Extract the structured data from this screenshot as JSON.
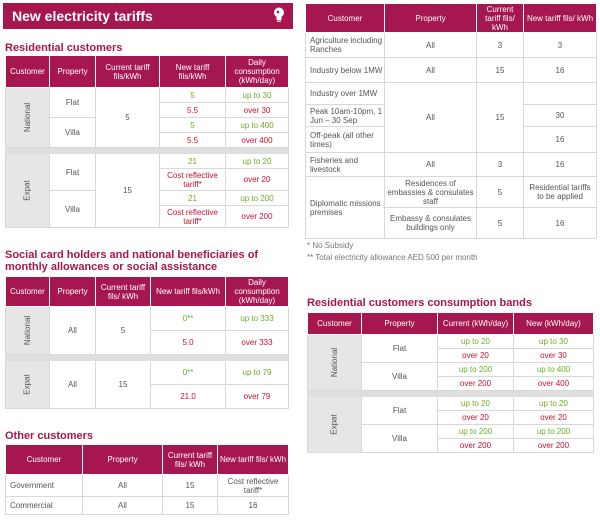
{
  "title": "New electricity tariffs",
  "residential": {
    "heading": "Residential customers",
    "headers": [
      "Customer",
      "Property",
      "Current tariff fils/kWh",
      "New tariff fils/kWh",
      "Daily consumption (kWh/day)"
    ],
    "national": {
      "label": "National",
      "current": "5",
      "flat": {
        "label": "Flat",
        "rows": [
          [
            "5",
            "up to 30"
          ],
          [
            "5.5",
            "over 30"
          ]
        ]
      },
      "villa": {
        "label": "Villa",
        "rows": [
          [
            "5",
            "up to 400"
          ],
          [
            "5.5",
            "over 400"
          ]
        ]
      }
    },
    "expat": {
      "label": "Expat",
      "current": "15",
      "flat": {
        "label": "Flat",
        "rows": [
          [
            "21",
            "up to 20"
          ],
          [
            "Cost reflective tariff*",
            "over 20"
          ]
        ]
      },
      "villa": {
        "label": "Villa",
        "rows": [
          [
            "21",
            "up to 200"
          ],
          [
            "Cost reflective tariff*",
            "over 200"
          ]
        ]
      }
    }
  },
  "social": {
    "heading": "Social card holders and national beneficiaries of monthly allowances or social assistance",
    "headers": [
      "Customer",
      "Property",
      "Current tariff fils/ kWh",
      "New tariff fils/kWh",
      "Daily consumption (kWh/day)"
    ],
    "national": {
      "label": "National",
      "property": "All",
      "current": "5",
      "rows": [
        [
          "0**",
          "up to 333"
        ],
        [
          "5.0",
          "over 333"
        ]
      ]
    },
    "expat": {
      "label": "Expat",
      "property": "All",
      "current": "15",
      "rows": [
        [
          "0**",
          "up to 79"
        ],
        [
          "21.0",
          "over 79"
        ]
      ]
    }
  },
  "other": {
    "heading": "Other customers",
    "headers": [
      "Customer",
      "Property",
      "Current tariff fils/ kWh",
      "New tariff fils/ kWh"
    ],
    "rows": [
      [
        "Government",
        "All",
        "15",
        "Cost reflective tariff*"
      ],
      [
        "Commercial",
        "All",
        "15",
        "16"
      ]
    ]
  },
  "nonres": {
    "headers": [
      "Customer",
      "Property",
      "Current tariff fils/ kWh",
      "New tariff fils/ kWh"
    ],
    "agri": [
      "Agriculture including Ranches",
      "All",
      "3",
      "3"
    ],
    "ind_below": [
      "Industry below 1MW",
      "All",
      "15",
      "16"
    ],
    "ind_over": {
      "customer": "Industry over 1MW",
      "property": "All",
      "current": "15",
      "peak": "Peak 10am-10pm, 1 Jun – 30 Sep",
      "peak_tariff": "30",
      "offpeak": "Off-peak (all other times)",
      "offpeak_tariff": "16"
    },
    "fish": [
      "Fisheries and livestock",
      "All",
      "3",
      "16"
    ],
    "diplo": {
      "customer": "Diplomatic missions premises",
      "p1": "Residences of embassies & consulates staff",
      "c1": "5",
      "n1": "Residential tariffs to be applied",
      "p2": "Embassy & consulates buildings only",
      "c2": "5",
      "n2": "16"
    }
  },
  "notes": [
    "* No Subsidy",
    "** Total electricity allowance AED 500 per month"
  ],
  "bands": {
    "heading": "Residential customers consumption bands",
    "headers": [
      "Customer",
      "Property",
      "Current (kWh/day)",
      "New (kWh/day)"
    ],
    "national": {
      "label": "National",
      "flat": {
        "label": "Flat",
        "rows": [
          [
            "up to 20",
            "up to 30"
          ],
          [
            "over 20",
            "over 30"
          ]
        ]
      },
      "villa": {
        "label": "Villa",
        "rows": [
          [
            "up to 200",
            "up to 400"
          ],
          [
            "over 200",
            "over 400"
          ]
        ]
      }
    },
    "expat": {
      "label": "Expat",
      "flat": {
        "label": "Flat",
        "rows": [
          [
            "up to 20",
            "up to 20"
          ],
          [
            "over 20",
            "over 20"
          ]
        ]
      },
      "villa": {
        "label": "Villa",
        "rows": [
          [
            "up to 200",
            "up to 200"
          ],
          [
            "over 200",
            "over 200"
          ]
        ]
      }
    }
  }
}
